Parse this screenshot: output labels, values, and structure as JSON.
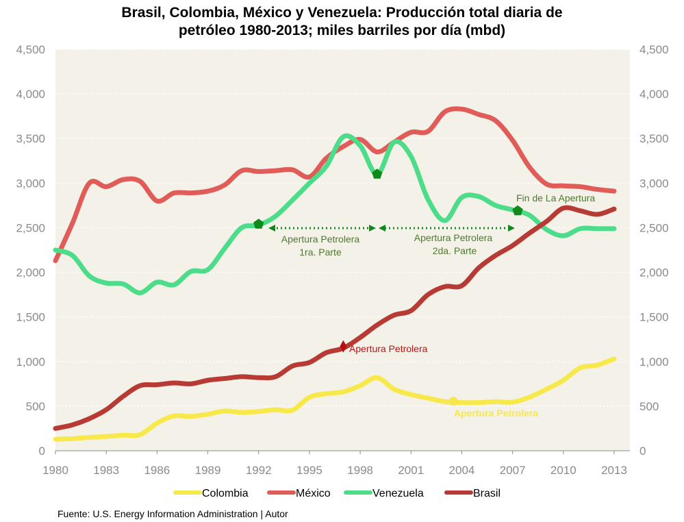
{
  "title_line1": "Brasil, Colombia, México y Venezuela: Producción total diaria de",
  "title_line2": "petróleo 1980-2013; miles barriles por día (mbd)",
  "source": "Fuente: U.S. Energy Information Administration  |  Autor",
  "colors": {
    "plot_bg": "#f4f1e8",
    "grid": "#ffffff",
    "colombia": "#f7e94c",
    "mexico": "#e05c58",
    "venezuela": "#4cdc8a",
    "brasil": "#b73a34",
    "marker_green": "#0f8a1a",
    "marker_red": "#b81010",
    "annot_green": "#4c7a2c",
    "annot_red": "#c01010",
    "annot_yellow": "#f7e94c"
  },
  "chart_data": {
    "type": "line",
    "title": "Brasil, Colombia, México y Venezuela: Producción total diaria de petróleo 1980-2013; miles barriles por día (mbd)",
    "xlabel": "",
    "ylabel": "",
    "xlim": [
      1980,
      2013
    ],
    "ylim": [
      0,
      4500
    ],
    "x_ticks": [
      "1980",
      "1983",
      "1986",
      "1989",
      "1992",
      "1995",
      "1998",
      "2001",
      "2004",
      "2007",
      "2010",
      "2013"
    ],
    "y_ticks": [
      "0",
      "500",
      "1,000",
      "1,500",
      "2,000",
      "2,500",
      "3,000",
      "3,500",
      "4,000",
      "4,500"
    ],
    "grid": true,
    "legend_position": "bottom",
    "series": [
      {
        "name": "Colombia",
        "color": "#f7e94c",
        "x": [
          1980,
          1981,
          1982,
          1983,
          1984,
          1985,
          1986,
          1987,
          1988,
          1989,
          1990,
          1991,
          1992,
          1993,
          1994,
          1995,
          1996,
          1997,
          1998,
          1999,
          2000,
          2001,
          2002,
          2003,
          2004,
          2005,
          2006,
          2007,
          2008,
          2009,
          2010,
          2011,
          2012,
          2013
        ],
        "values": [
          130,
          135,
          150,
          160,
          175,
          180,
          310,
          390,
          385,
          410,
          445,
          430,
          440,
          460,
          455,
          600,
          640,
          660,
          730,
          820,
          690,
          630,
          590,
          550,
          540,
          540,
          550,
          545,
          600,
          690,
          790,
          930,
          960,
          1030
        ]
      },
      {
        "name": "México",
        "color": "#e05c58",
        "x": [
          1980,
          1981,
          1982,
          1983,
          1984,
          1985,
          1986,
          1987,
          1988,
          1989,
          1990,
          1991,
          1992,
          1993,
          1994,
          1995,
          1996,
          1997,
          1998,
          1999,
          2000,
          2001,
          2002,
          2003,
          2004,
          2005,
          2006,
          2007,
          2008,
          2009,
          2010,
          2011,
          2012,
          2013
        ],
        "values": [
          2130,
          2550,
          3000,
          2960,
          3040,
          3020,
          2800,
          2890,
          2890,
          2910,
          2980,
          3140,
          3130,
          3140,
          3150,
          3070,
          3280,
          3410,
          3490,
          3350,
          3460,
          3570,
          3580,
          3800,
          3830,
          3770,
          3700,
          3480,
          3180,
          2990,
          2970,
          2960,
          2930,
          2910
        ]
      },
      {
        "name": "Venezuela",
        "color": "#4cdc8a",
        "x": [
          1980,
          1981,
          1982,
          1983,
          1984,
          1985,
          1986,
          1987,
          1988,
          1989,
          1990,
          1991,
          1992,
          1993,
          1994,
          1995,
          1996,
          1997,
          1998,
          1999,
          2000,
          2001,
          2002,
          2003,
          2004,
          2005,
          2006,
          2007,
          2008,
          2009,
          2010,
          2011,
          2012,
          2013
        ],
        "values": [
          2250,
          2190,
          1960,
          1880,
          1870,
          1770,
          1890,
          1860,
          2010,
          2030,
          2270,
          2500,
          2530,
          2630,
          2810,
          3000,
          3190,
          3520,
          3420,
          3100,
          3460,
          3300,
          2820,
          2580,
          2840,
          2850,
          2750,
          2700,
          2640,
          2480,
          2410,
          2490,
          2490,
          2490
        ]
      },
      {
        "name": "Brasil",
        "color": "#b73a34",
        "x": [
          1980,
          1981,
          1982,
          1983,
          1984,
          1985,
          1986,
          1987,
          1988,
          1989,
          1990,
          1991,
          1992,
          1993,
          1994,
          1995,
          1996,
          1997,
          1998,
          1999,
          2000,
          2001,
          2002,
          2003,
          2004,
          2005,
          2006,
          2007,
          2008,
          2009,
          2010,
          2011,
          2012,
          2013
        ],
        "values": [
          250,
          290,
          360,
          460,
          610,
          730,
          740,
          760,
          750,
          790,
          810,
          830,
          820,
          830,
          950,
          990,
          1100,
          1150,
          1270,
          1410,
          1520,
          1570,
          1750,
          1840,
          1850,
          2050,
          2190,
          2300,
          2440,
          2570,
          2720,
          2690,
          2650,
          2710
        ]
      }
    ],
    "annotations": [
      {
        "text": "Apertura Petrolera",
        "series": "Colombia",
        "x": 2003.5,
        "y": 550
      },
      {
        "text": "Apertura Petrolera",
        "series": "Brasil",
        "x": 1997,
        "y": 1170
      },
      {
        "text_line1": "Apertura Petrolera",
        "text_line2": "1ra. Parte",
        "series": "Venezuela",
        "x_start": 1992,
        "x_end": 1999,
        "y": 2500
      },
      {
        "text_line1": "Apertura Petrolera",
        "text_line2": "2da. Parte",
        "series": "Venezuela",
        "x_start": 1999,
        "x_end": 2007.3,
        "y": 2500
      },
      {
        "text": "Fin de La Apertura",
        "series": "Venezuela",
        "x": 2007.3,
        "y": 2690
      }
    ],
    "markers": [
      {
        "series": "Venezuela",
        "x": 1992,
        "y": 2540,
        "shape": "pentagon"
      },
      {
        "series": "Venezuela",
        "x": 1999,
        "y": 3100,
        "shape": "pentagon"
      },
      {
        "series": "Venezuela",
        "x": 2007.3,
        "y": 2690,
        "shape": "pentagon"
      },
      {
        "series": "Brasil",
        "x": 1997,
        "y": 1170,
        "shape": "diamond"
      },
      {
        "series": "Colombia",
        "x": 2003.5,
        "y": 555,
        "shape": "circle"
      }
    ]
  }
}
